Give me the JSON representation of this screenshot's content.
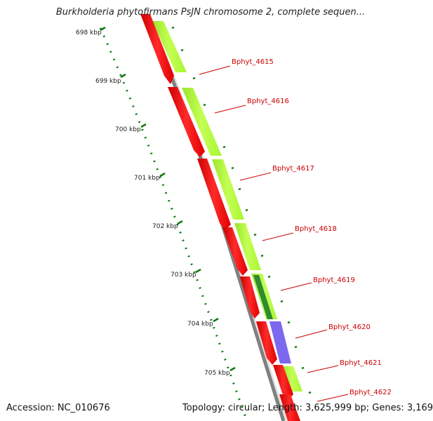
{
  "title": "Burkholderia phytofirmans PsJN chromosome 2, complete sequen...",
  "footer": {
    "accession": "Accession: NC_010676",
    "summary": "Topology: circular; Length: 3,625,999 bp; Genes: 3,169"
  },
  "colors": {
    "cds_track": "#ff0000",
    "feature_track": "#adff2f",
    "feature_dark": "#2e8b2e",
    "feature_purple": "#7b68ee",
    "backbone": "#808080",
    "tick": "#117711",
    "label": "#cc0000"
  },
  "ticks": [
    "698 kbp",
    "699 kbp",
    "700 kbp",
    "701 kbp",
    "702 kbp",
    "703 kbp",
    "704 kbp",
    "705 kbp"
  ],
  "genes": [
    "Bphyt_4615",
    "Bphyt_4616",
    "Bphyt_4617",
    "Bphyt_4618",
    "Bphyt_4619",
    "Bphyt_4620",
    "Bphyt_4621",
    "Bphyt_4622"
  ]
}
